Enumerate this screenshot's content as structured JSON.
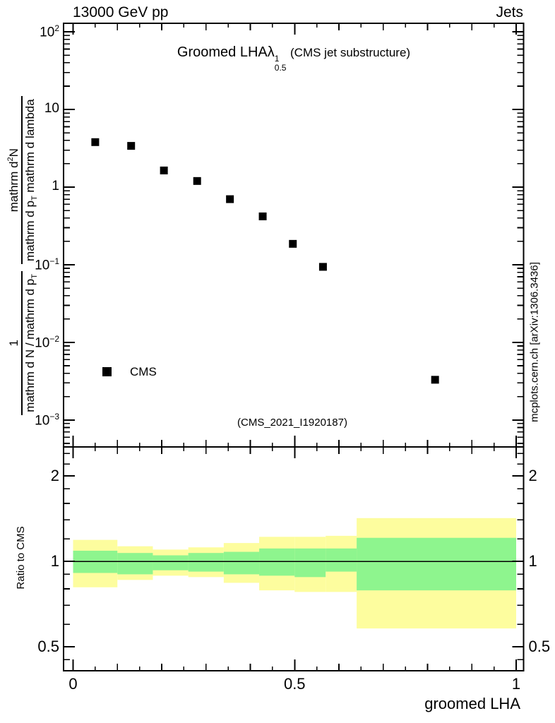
{
  "header": {
    "left": "13000 GeV pp",
    "right": "Jets"
  },
  "title": {
    "main": "Groomed LHA",
    "lambda": "λ",
    "sup": "1",
    "sub": "0.5",
    "suffix": "(CMS jet substructure)"
  },
  "legend": {
    "label": "CMS"
  },
  "ref_label": "(CMS_2021_I1920187)",
  "watermark": "mcplots.cern.ch [arXiv:1306.3436]",
  "ratio_ylabel": "Ratio to CMS",
  "xlabel": "groomed LHA",
  "ylabel": {
    "frac1": {
      "num": "1",
      "den": "mathrm d N / mathrm d p",
      "den_sub": "T"
    },
    "frac2": {
      "num_a": "mathrm d",
      "num_sup": "2",
      "num_b": "N",
      "den_a": "mathrm d p",
      "den_a_sub": "T",
      "den_b": "mathrm d lambda"
    }
  },
  "chart_data": {
    "type": "scatter",
    "title": "Groomed LHA lambda^1_0.5 (CMS jet substructure)",
    "xlabel": "groomed LHA",
    "legend_position": "left-middle",
    "grid": false,
    "xaxis": {
      "frame_range": [
        -0.0215,
        1.017
      ],
      "major_ticks": [
        0,
        0.5,
        1
      ],
      "major_labels": [
        "0",
        "0.5",
        "1"
      ],
      "medium_tick_step": 0.1,
      "minor_tick_step": 0.05
    },
    "main_panel": {
      "yscale": "log10",
      "ylim": [
        0.00045,
        129
      ],
      "ytick_labels": [
        {
          "v": 100,
          "base": "10",
          "sup": "2"
        },
        {
          "v": 10,
          "base": "10",
          "sup": ""
        },
        {
          "v": 1,
          "base": "1",
          "sup": ""
        },
        {
          "v": 0.1,
          "base": "10",
          "sup": "−1"
        },
        {
          "v": 0.01,
          "base": "10",
          "sup": "−2"
        },
        {
          "v": 0.001,
          "base": "10",
          "sup": "−3"
        }
      ],
      "series": [
        {
          "name": "CMS",
          "marker": "filled-square",
          "color": "#000000",
          "x": [
            0.05,
            0.131,
            0.205,
            0.28,
            0.354,
            0.428,
            0.496,
            0.564,
            0.817
          ],
          "y": [
            3.8,
            3.4,
            1.64,
            1.2,
            0.7,
            0.42,
            0.186,
            0.094,
            0.0033
          ]
        }
      ]
    },
    "ratio_panel": {
      "yscale": "log",
      "ylim": [
        0.4115,
        2.53
      ],
      "ytick_labels": [
        {
          "v": 2,
          "label": "2"
        },
        {
          "v": 1,
          "label": "1"
        },
        {
          "v": 0.5,
          "label": "0.5"
        }
      ],
      "minor_ticks": [
        0.45,
        0.6,
        0.7,
        0.8,
        0.9,
        1.2,
        1.4,
        1.6,
        1.8,
        2.2,
        2.4
      ],
      "reference_line": 1,
      "bin_edges": [
        0,
        0.1,
        0.18,
        0.26,
        0.34,
        0.42,
        0.5,
        0.57,
        0.64,
        1.0
      ],
      "band_yellow_hi": [
        1.19,
        1.13,
        1.1,
        1.12,
        1.16,
        1.22,
        1.22,
        1.23,
        1.42
      ],
      "band_green_hi": [
        1.09,
        1.07,
        1.05,
        1.07,
        1.08,
        1.11,
        1.11,
        1.11,
        1.21
      ],
      "band_green_lo": [
        0.91,
        0.9,
        0.93,
        0.92,
        0.9,
        0.89,
        0.88,
        0.92,
        0.79
      ],
      "band_yellow_lo": [
        0.81,
        0.86,
        0.89,
        0.88,
        0.84,
        0.79,
        0.78,
        0.78,
        0.58
      ]
    },
    "colors": {
      "band_yellow": "#fdfd9e",
      "band_green": "#8ef58e",
      "gray_text": "#9d9d9d",
      "marker": "#000000",
      "frame": "#000000"
    }
  }
}
